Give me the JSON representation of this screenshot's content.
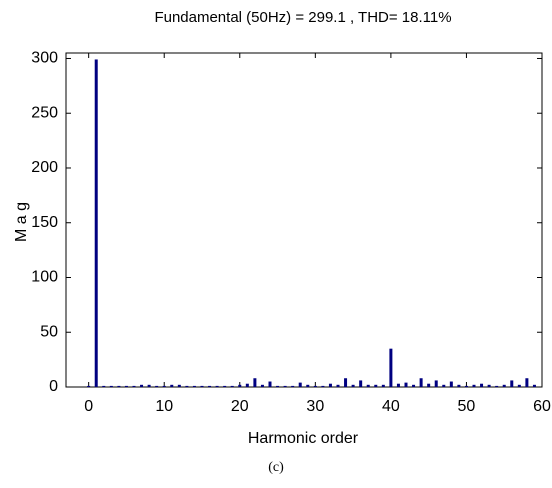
{
  "chart_data": {
    "type": "bar",
    "title": "Fundamental (50Hz) = 299.1 , THD= 18.11%",
    "x_label": "Harmonic order",
    "y_label": "M a g",
    "caption": "(c)",
    "x": [
      0,
      1,
      2,
      3,
      4,
      5,
      6,
      7,
      8,
      9,
      10,
      11,
      12,
      13,
      14,
      15,
      16,
      17,
      18,
      19,
      20,
      21,
      22,
      23,
      24,
      25,
      26,
      27,
      28,
      29,
      30,
      31,
      32,
      33,
      34,
      35,
      36,
      37,
      38,
      39,
      40,
      41,
      42,
      43,
      44,
      45,
      46,
      47,
      48,
      49,
      50,
      51,
      52,
      53,
      54,
      55,
      56,
      57,
      58,
      59
    ],
    "values": [
      1,
      299.1,
      1,
      1,
      1,
      1,
      1,
      2,
      2,
      1,
      1,
      2,
      2,
      1,
      1,
      1,
      1,
      1,
      1,
      1,
      2,
      3,
      8,
      2,
      5,
      1,
      1,
      1,
      4,
      2,
      1,
      1,
      3,
      2,
      8,
      2,
      6,
      2,
      2,
      2,
      35,
      3,
      4,
      2,
      8,
      3,
      6,
      2,
      5,
      2,
      1,
      2,
      3,
      2,
      1,
      2,
      6,
      2,
      8,
      2
    ],
    "color": "#000080",
    "xlim": [
      -3,
      60
    ],
    "ylim": [
      0,
      305
    ],
    "xticks": [
      0,
      10,
      20,
      30,
      40,
      50,
      60
    ],
    "yticks": [
      0,
      50,
      100,
      150,
      200,
      250,
      300
    ],
    "grid": false
  }
}
